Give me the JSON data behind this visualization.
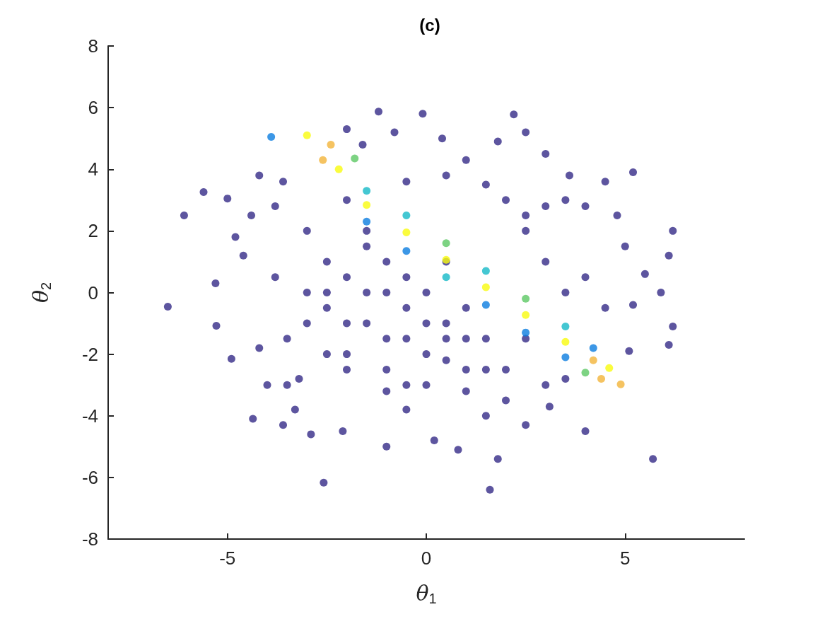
{
  "chart_data": {
    "type": "scatter",
    "title": "(c)",
    "xlabel": "θ$_{1}$",
    "ylabel": "θ$_{2}$",
    "xlim": [
      -8,
      8
    ],
    "xticks": [
      -5,
      0,
      5
    ],
    "ylim": [
      -8,
      8
    ],
    "yticks": [
      -8,
      -6,
      -4,
      -2,
      0,
      2,
      4,
      6,
      8
    ],
    "grid": false,
    "marker": "circle",
    "series": [
      {
        "color": "#352a87",
        "x": [
          -6.5,
          -6.09,
          -5.6,
          -5.0,
          -5.3,
          -5.28,
          -4.9,
          -4.36,
          -4.2,
          -2.58,
          -1.2,
          -0.09,
          0.4,
          2.2,
          2.5,
          3.0,
          4.5,
          5.2,
          6.2,
          6.1,
          6.2,
          6.1,
          5.7,
          5.1,
          4.0,
          1.6,
          1.8,
          0.2,
          -2.9,
          -3.6,
          -4.8,
          -4.6,
          -4.4,
          -3.6,
          -2.0,
          -1.6,
          -0.8,
          1.0,
          1.8,
          3.6,
          4.0,
          4.8,
          5.0,
          5.5,
          5.9,
          5.2,
          -4.0,
          -3.3,
          -2.1,
          -1.0,
          0.8,
          2.5,
          3.1,
          3.5,
          -3.8,
          -3.5,
          -3.0,
          -2.5,
          -2.5,
          -2.0,
          -1.5,
          -1.5,
          -1.0,
          -1.0,
          -0.5,
          0.0,
          0.0,
          0.5,
          1.0,
          1.0,
          1.5,
          2.0,
          2.5,
          2.0,
          2.5,
          3.0,
          3.5,
          1.5,
          3.0,
          4.0,
          4.5,
          -3.2,
          -0.5,
          1.5,
          -2.0,
          -3.8,
          -4.2,
          0.5,
          -0.5,
          -3.0,
          -2.0,
          -1.0,
          0.0,
          -3.0,
          -2.0,
          -1.0,
          0.0,
          1.0,
          -2.5,
          -1.5,
          -0.5,
          0.5,
          -2.5,
          -1.5,
          -0.5,
          0.5,
          1.5,
          -3.5,
          -2.0,
          -0.5,
          1.0,
          2.0,
          3.0,
          -1.0,
          0.5,
          2.5,
          3.5
        ],
        "values": [
          -0.46,
          2.5,
          3.26,
          3.05,
          0.3,
          -1.08,
          -2.15,
          -4.1,
          3.8,
          -6.17,
          5.87,
          5.8,
          5.0,
          5.78,
          5.2,
          4.5,
          3.6,
          3.9,
          2.0,
          1.2,
          -1.1,
          -1.7,
          -5.4,
          -1.9,
          -4.5,
          -6.4,
          -5.4,
          -4.8,
          -4.6,
          -4.3,
          1.8,
          1.2,
          2.5,
          3.6,
          5.3,
          4.8,
          5.2,
          4.3,
          4.9,
          3.8,
          2.8,
          2.5,
          1.5,
          0.6,
          0.0,
          -0.4,
          -3.0,
          -3.8,
          -4.5,
          -5.0,
          -5.1,
          -4.3,
          -3.7,
          -2.8,
          0.5,
          -1.5,
          2.0,
          1.0,
          -2.0,
          -1.0,
          2.0,
          0.0,
          -2.5,
          1.0,
          -1.5,
          0.0,
          -3.0,
          -1.5,
          -2.5,
          -0.5,
          -1.5,
          -2.5,
          -1.5,
          3.0,
          2.0,
          1.0,
          0.0,
          3.5,
          2.8,
          0.5,
          -0.5,
          -2.8,
          -3.8,
          -4.0,
          3.0,
          2.8,
          -1.8,
          3.8,
          3.6,
          0.0,
          0.5,
          0.0,
          -1.0,
          -1.0,
          -2.0,
          -1.5,
          -2.0,
          -1.5,
          -0.5,
          1.5,
          0.5,
          1.0,
          0.0,
          -1.0,
          -0.5,
          -1.0,
          -2.5,
          -3.0,
          -2.5,
          -3.0,
          -3.2,
          -3.5,
          -3.0,
          -3.2,
          -2.2,
          2.5,
          3.0
        ]
      },
      {
        "x": [
          -1.5,
          -1.5,
          -1.5,
          -0.5,
          -0.5,
          -0.5,
          0.5,
          0.5,
          0.5,
          1.5,
          1.5,
          1.5,
          2.5,
          2.5,
          2.5,
          3.5,
          3.5,
          3.5,
          4.2,
          4.2,
          -3.9,
          -3.0,
          -2.4,
          -2.6,
          -2.2,
          -1.8,
          4.89,
          4.6,
          4.4,
          4.0
        ],
        "values": [
          2.84,
          3.3,
          2.3,
          1.95,
          2.5,
          1.35,
          1.06,
          1.6,
          0.5,
          0.17,
          0.7,
          -0.4,
          -0.73,
          -0.2,
          -1.3,
          -1.6,
          -1.1,
          -2.1,
          -2.2,
          -1.8,
          5.05,
          5.1,
          4.8,
          4.3,
          4.0,
          4.35,
          -2.98,
          -2.45,
          -2.8,
          -2.6
        ],
        "colors": [
          "#f9fb0e",
          "#15b9c7",
          "#0b7de0",
          "#f9fb0e",
          "#15b9c7",
          "#0b7de0",
          "#f9fb0e",
          "#5cc864",
          "#15b9c7",
          "#f9fb0e",
          "#15b9c7",
          "#0b7de0",
          "#f9fb0e",
          "#5cc864",
          "#0b7de0",
          "#f9fb0e",
          "#15b9c7",
          "#0b7de0",
          "#f3b43a",
          "#0b7de0",
          "#0b7de0",
          "#f9fb0e",
          "#f3b43a",
          "#f3b43a",
          "#f9fb0e",
          "#5cc864",
          "#f3b43a",
          "#f9fb0e",
          "#f3b43a",
          "#5cc864"
        ]
      }
    ]
  }
}
